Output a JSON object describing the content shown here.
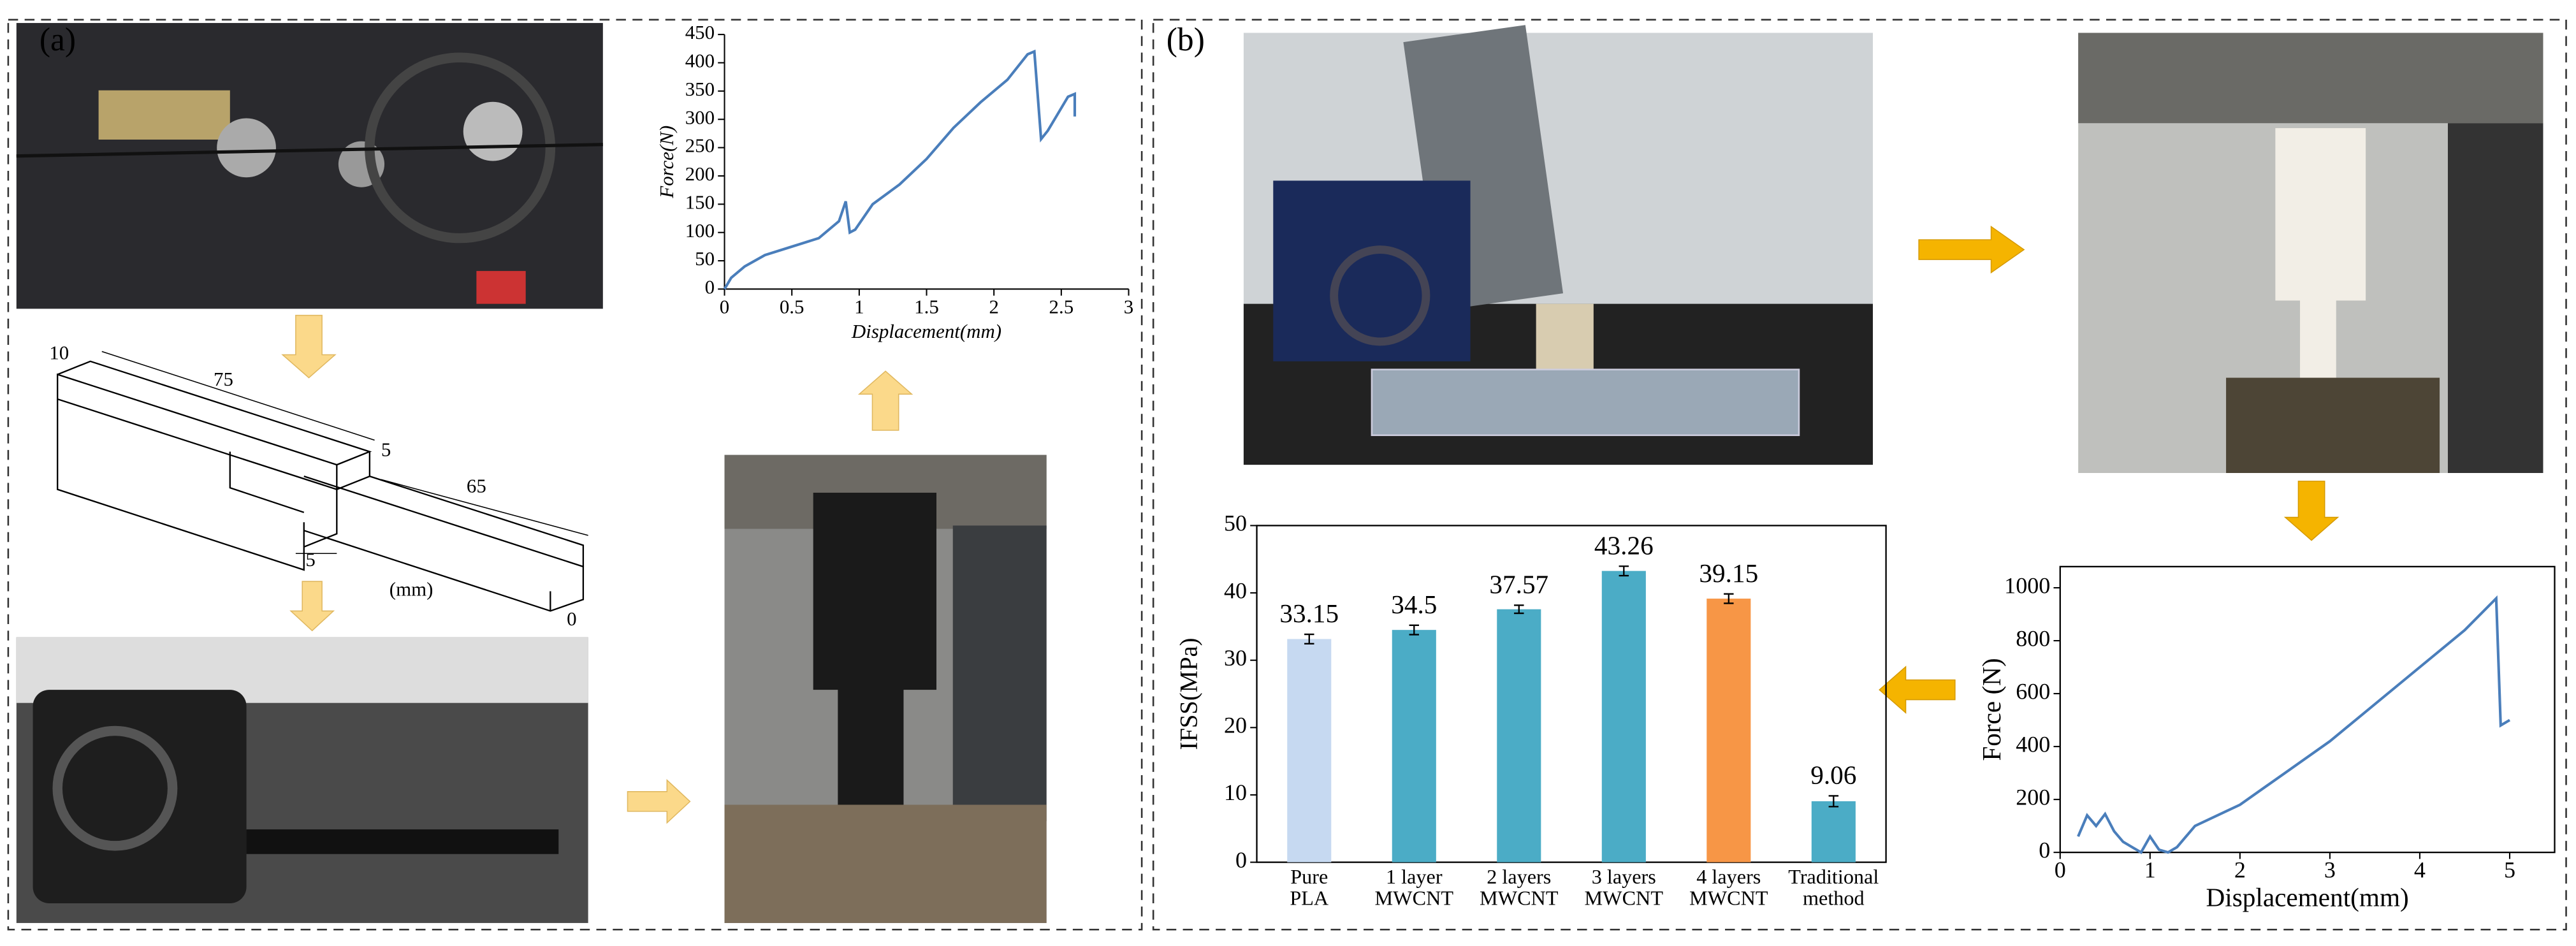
{
  "panel_labels": [
    "(a)",
    "(b)"
  ],
  "diagram": {
    "labels": [
      "10",
      "75",
      "5",
      "65",
      "5",
      "(mm)",
      "0"
    ]
  },
  "chart_data": [
    {
      "type": "line",
      "x_label": "Displacement(mm)",
      "y_label": "Force(N)",
      "x": [
        0,
        0.05,
        0.15,
        0.3,
        0.5,
        0.7,
        0.85,
        0.9,
        0.93,
        0.97,
        1.1,
        1.3,
        1.5,
        1.7,
        1.9,
        2.1,
        2.25,
        2.3,
        2.35,
        2.4,
        2.55,
        2.6,
        2.6
      ],
      "series": [
        {
          "color": "#4a7ebb",
          "values": [
            0,
            20,
            40,
            60,
            75,
            90,
            120,
            155,
            100,
            105,
            150,
            185,
            230,
            285,
            330,
            370,
            415,
            420,
            265,
            280,
            340,
            345,
            305
          ]
        }
      ],
      "xlim": [
        0,
        3
      ],
      "ylim": [
        0,
        450
      ],
      "xticks": [
        0,
        0.5,
        1,
        1.5,
        2,
        2.5,
        3
      ],
      "yticks": [
        0,
        50,
        100,
        150,
        200,
        250,
        300,
        350,
        400,
        450
      ]
    },
    {
      "type": "bar",
      "y_label": "IFSS(MPa)",
      "categories": [
        "Pure\nPLA",
        "1 layer\nMWCNT",
        "2 layers\nMWCNT",
        "3 layers\nMWCNT",
        "4 layers\nMWCNT",
        "Traditional\nmethod"
      ],
      "values": [
        33.15,
        34.5,
        37.57,
        43.26,
        39.15,
        9.06
      ],
      "errors": [
        0.7,
        0.7,
        0.6,
        0.7,
        0.7,
        0.8
      ],
      "colors": [
        "#c6d9f1",
        "#4bacc6",
        "#4bacc6",
        "#4bacc6",
        "#f79646",
        "#4bacc6"
      ],
      "ylim": [
        0,
        50
      ],
      "yticks": [
        0,
        10,
        20,
        30,
        40,
        50
      ]
    },
    {
      "type": "line",
      "x_label": "Displacement(mm)",
      "y_label": "Force (N)",
      "x": [
        0.2,
        0.3,
        0.4,
        0.5,
        0.6,
        0.7,
        0.8,
        0.9,
        1.0,
        1.1,
        1.2,
        1.3,
        1.5,
        2,
        2.5,
        3,
        3.5,
        4,
        4.5,
        4.85,
        4.9,
        5
      ],
      "series": [
        {
          "color": "#4a7ebb",
          "values": [
            60,
            140,
            100,
            145,
            80,
            40,
            20,
            0,
            60,
            10,
            0,
            20,
            100,
            180,
            300,
            420,
            560,
            700,
            840,
            960,
            480,
            500
          ]
        }
      ],
      "xlim": [
        0,
        5.5
      ],
      "ylim": [
        0,
        1080
      ],
      "xticks": [
        0,
        1,
        2,
        3,
        4,
        5
      ],
      "yticks": [
        0,
        200,
        400,
        600,
        800,
        1000
      ]
    }
  ]
}
